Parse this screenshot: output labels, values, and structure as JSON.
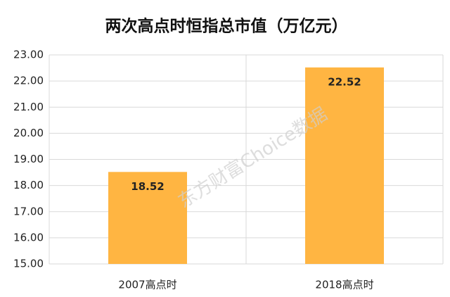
{
  "chart_data": {
    "type": "bar",
    "title": "两次高点时恒指总市值（万亿元）",
    "categories": [
      "2007高点时",
      "2018高点时"
    ],
    "values": [
      18.52,
      22.52
    ],
    "color": "#ffb542",
    "ylim": [
      15,
      23
    ],
    "yticks": [
      {
        "value": 15,
        "label": "15.00"
      },
      {
        "value": 16,
        "label": "16.00"
      },
      {
        "value": 17,
        "label": "17.00"
      },
      {
        "value": 18,
        "label": "18.00"
      },
      {
        "value": 19,
        "label": "19.00"
      },
      {
        "value": 20,
        "label": "20.00"
      },
      {
        "value": 21,
        "label": "21.00"
      },
      {
        "value": 22,
        "label": "22.00"
      },
      {
        "value": 23,
        "label": "23.00"
      }
    ],
    "grid": true,
    "watermark": "东方财富Choice数据"
  }
}
